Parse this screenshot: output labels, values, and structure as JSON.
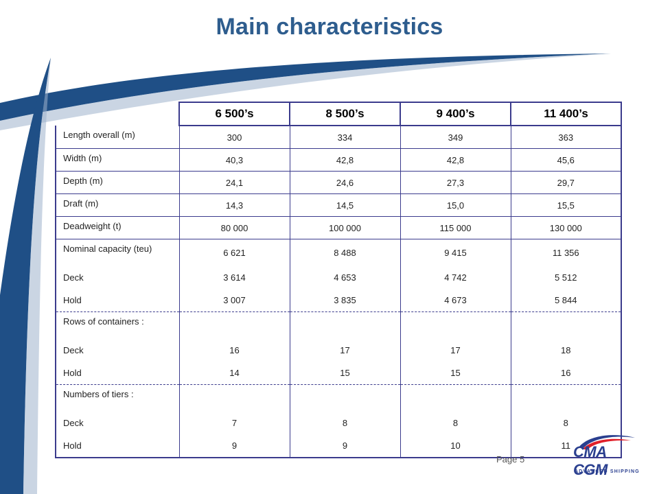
{
  "title": "Main characteristics",
  "table": {
    "headers": [
      "6 500’s",
      "8 500’s",
      "9 400’s",
      "11 400’s"
    ],
    "simple_rows": [
      {
        "label": "Length overall (m)",
        "values": [
          "300",
          "334",
          "349",
          "363"
        ]
      },
      {
        "label": "Width (m)",
        "values": [
          "40,3",
          "42,8",
          "42,8",
          "45,6"
        ]
      },
      {
        "label": "Depth (m)",
        "values": [
          "24,1",
          "24,6",
          "27,3",
          "29,7"
        ]
      },
      {
        "label": "Draft (m)",
        "values": [
          "14,3",
          "14,5",
          "15,0",
          "15,5"
        ]
      },
      {
        "label": "Deadweight (t)",
        "values": [
          "80 000",
          "100 000",
          "115 000",
          "130 000"
        ]
      }
    ],
    "capacity": {
      "label": "Nominal capacity (teu)",
      "values": [
        "6 621",
        "8 488",
        "9 415",
        "11 356"
      ],
      "deck": {
        "label": "Deck",
        "values": [
          "3 614",
          "4 653",
          "4 742",
          "5 512"
        ]
      },
      "hold": {
        "label": "Hold",
        "values": [
          "3 007",
          "3 835",
          "4 673",
          "5 844"
        ]
      }
    },
    "rows_of_containers": {
      "label": "Rows of containers :",
      "deck": {
        "label": "Deck",
        "values": [
          "16",
          "17",
          "17",
          "18"
        ]
      },
      "hold": {
        "label": "Hold",
        "values": [
          "14",
          "15",
          "15",
          "16"
        ]
      }
    },
    "tiers": {
      "label": "Numbers of tiers  :",
      "deck": {
        "label": "Deck",
        "values": [
          "7",
          "8",
          "8",
          "8"
        ]
      },
      "hold": {
        "label": "Hold",
        "values": [
          "9",
          "9",
          "10",
          "11"
        ]
      }
    }
  },
  "footer": {
    "page": "Page 5",
    "logo_text": "CMA CGM",
    "logo_tagline": "ADVANCED SHIPPING"
  },
  "colors": {
    "title": "#2e5d8e",
    "swoosh": "#1f4f86",
    "table_border": "#3a3a8c",
    "logo": "#2a3f8f",
    "logo_accent": "#e0202a"
  }
}
